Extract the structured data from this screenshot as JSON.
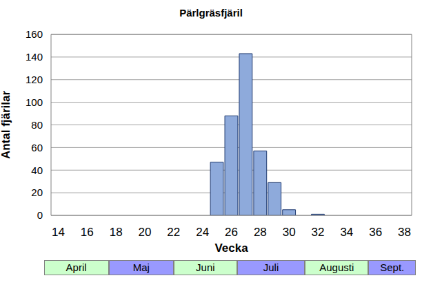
{
  "chart_data": {
    "type": "bar",
    "title": "Pärlgräsfjäril",
    "x_label": "Vecka",
    "y_label": "Antal fjärilar",
    "x": [
      25,
      26,
      27,
      28,
      29,
      30,
      31,
      32
    ],
    "values": [
      47,
      88,
      143,
      57,
      29,
      5,
      0,
      1
    ],
    "color": "#8eaadb",
    "xlim": [
      13.5,
      38.5
    ],
    "xticks": [
      14,
      16,
      18,
      20,
      22,
      24,
      26,
      28,
      30,
      32,
      34,
      36,
      38
    ],
    "ylim": [
      0,
      160
    ],
    "yticks": [
      0,
      20,
      40,
      60,
      80,
      100,
      120,
      140,
      160
    ],
    "grid": true,
    "month_band": [
      {
        "label": "April",
        "from": 13,
        "to": 17.5
      },
      {
        "label": "Maj",
        "from": 17.5,
        "to": 22
      },
      {
        "label": "Juni",
        "from": 22,
        "to": 26.4
      },
      {
        "label": "Juli",
        "from": 26.4,
        "to": 31.1
      },
      {
        "label": "Augusti",
        "from": 31.1,
        "to": 35.5
      },
      {
        "label": "Sept.",
        "from": 35.5,
        "to": 38.8
      }
    ]
  }
}
